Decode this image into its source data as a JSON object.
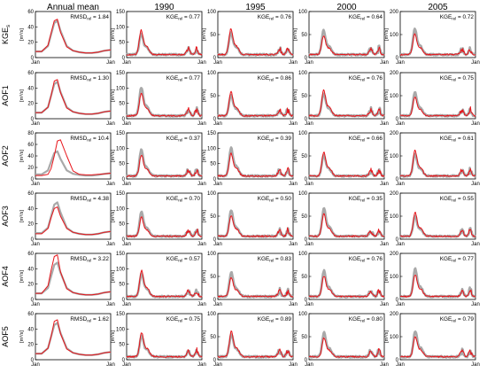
{
  "figure": {
    "columns": [
      "Annual mean",
      "1990",
      "1995",
      "2000",
      "2005"
    ],
    "rows": [
      {
        "label": "KGE",
        "label_sub": "s"
      },
      {
        "label": "AOF1",
        "label_sub": ""
      },
      {
        "label": "AOF2",
        "label_sub": ""
      },
      {
        "label": "AOF3",
        "label_sub": ""
      },
      {
        "label": "AOF4",
        "label_sub": ""
      },
      {
        "label": "AOF5",
        "label_sub": ""
      }
    ],
    "unit_label": "[m³/s]",
    "x_tick_labels": [
      "Jan",
      "Jan"
    ],
    "metric_sub": "rel",
    "colors": {
      "simulated": "#e8141a",
      "observed": "#a9a9a9",
      "axis": "#000000"
    }
  },
  "chart_data": {
    "type": "line",
    "description_series": [
      "observed (grey)",
      "simulated (red)"
    ],
    "panels": [
      {
        "row": 0,
        "col": 0,
        "ylim": [
          0,
          60
        ],
        "yticks": [
          0,
          20,
          40,
          60
        ],
        "metric": "RMSD",
        "metric_value": "1.84"
      },
      {
        "row": 0,
        "col": 1,
        "ylim": [
          0,
          150
        ],
        "yticks": [
          0,
          50,
          100,
          150
        ],
        "metric": "KGE",
        "metric_value": "0.77"
      },
      {
        "row": 0,
        "col": 2,
        "ylim": [
          0,
          100
        ],
        "yticks": [
          0,
          50,
          100
        ],
        "metric": "KGE",
        "metric_value": "0.76"
      },
      {
        "row": 0,
        "col": 3,
        "ylim": [
          0,
          100
        ],
        "yticks": [
          0,
          50,
          100
        ],
        "metric": "KGE",
        "metric_value": "0.64"
      },
      {
        "row": 0,
        "col": 4,
        "ylim": [
          0,
          200
        ],
        "yticks": [
          0,
          100,
          200
        ],
        "metric": "KGE",
        "metric_value": "0.72"
      },
      {
        "row": 1,
        "col": 0,
        "ylim": [
          0,
          60
        ],
        "yticks": [
          0,
          20,
          40,
          60
        ],
        "metric": "RMSD",
        "metric_value": "1.30"
      },
      {
        "row": 1,
        "col": 1,
        "ylim": [
          0,
          150
        ],
        "yticks": [
          0,
          50,
          100,
          150
        ],
        "metric": "KGE",
        "metric_value": "0.77"
      },
      {
        "row": 1,
        "col": 2,
        "ylim": [
          0,
          100
        ],
        "yticks": [
          0,
          50,
          100
        ],
        "metric": "KGE",
        "metric_value": "0.86"
      },
      {
        "row": 1,
        "col": 3,
        "ylim": [
          0,
          100
        ],
        "yticks": [
          0,
          50,
          100
        ],
        "metric": "KGE",
        "metric_value": "0.76"
      },
      {
        "row": 1,
        "col": 4,
        "ylim": [
          0,
          200
        ],
        "yticks": [
          0,
          100,
          200
        ],
        "metric": "KGE",
        "metric_value": "0.75"
      },
      {
        "row": 2,
        "col": 0,
        "ylim": [
          0,
          80
        ],
        "yticks": [
          0,
          20,
          40,
          60,
          80
        ],
        "metric": "RMSD",
        "metric_value": "10.4"
      },
      {
        "row": 2,
        "col": 1,
        "ylim": [
          0,
          150
        ],
        "yticks": [
          0,
          50,
          100,
          150
        ],
        "metric": "KGE",
        "metric_value": "0.37"
      },
      {
        "row": 2,
        "col": 2,
        "ylim": [
          0,
          150
        ],
        "yticks": [
          0,
          50,
          100,
          150
        ],
        "metric": "KGE",
        "metric_value": "0.39"
      },
      {
        "row": 2,
        "col": 3,
        "ylim": [
          0,
          100
        ],
        "yticks": [
          0,
          50,
          100
        ],
        "metric": "KGE",
        "metric_value": "0.66"
      },
      {
        "row": 2,
        "col": 4,
        "ylim": [
          0,
          200
        ],
        "yticks": [
          0,
          100,
          200
        ],
        "metric": "KGE",
        "metric_value": "0.61"
      },
      {
        "row": 3,
        "col": 0,
        "ylim": [
          0,
          60
        ],
        "yticks": [
          0,
          20,
          40,
          60
        ],
        "metric": "RMSD",
        "metric_value": "4.38"
      },
      {
        "row": 3,
        "col": 1,
        "ylim": [
          0,
          150
        ],
        "yticks": [
          0,
          50,
          100,
          150
        ],
        "metric": "KGE",
        "metric_value": "0.70"
      },
      {
        "row": 3,
        "col": 2,
        "ylim": [
          0,
          100
        ],
        "yticks": [
          0,
          50,
          100
        ],
        "metric": "KGE",
        "metric_value": "0.50"
      },
      {
        "row": 3,
        "col": 3,
        "ylim": [
          0,
          100
        ],
        "yticks": [
          0,
          50,
          100
        ],
        "metric": "KGE",
        "metric_value": "0.35"
      },
      {
        "row": 3,
        "col": 4,
        "ylim": [
          0,
          200
        ],
        "yticks": [
          0,
          100,
          200
        ],
        "metric": "KGE",
        "metric_value": "0.55"
      },
      {
        "row": 4,
        "col": 0,
        "ylim": [
          0,
          60
        ],
        "yticks": [
          0,
          20,
          40,
          60
        ],
        "metric": "RMSD",
        "metric_value": "3.22"
      },
      {
        "row": 4,
        "col": 1,
        "ylim": [
          0,
          150
        ],
        "yticks": [
          0,
          50,
          100,
          150
        ],
        "metric": "KGE",
        "metric_value": "0.57"
      },
      {
        "row": 4,
        "col": 2,
        "ylim": [
          0,
          100
        ],
        "yticks": [
          0,
          50,
          100
        ],
        "metric": "KGE",
        "metric_value": "0.83"
      },
      {
        "row": 4,
        "col": 3,
        "ylim": [
          0,
          100
        ],
        "yticks": [
          0,
          50,
          100
        ],
        "metric": "KGE",
        "metric_value": "0.76"
      },
      {
        "row": 4,
        "col": 4,
        "ylim": [
          0,
          200
        ],
        "yticks": [
          0,
          100,
          200
        ],
        "metric": "KGE",
        "metric_value": "0.77"
      },
      {
        "row": 5,
        "col": 0,
        "ylim": [
          0,
          60
        ],
        "yticks": [
          0,
          20,
          40,
          60
        ],
        "metric": "RMSD",
        "metric_value": "1.62"
      },
      {
        "row": 5,
        "col": 1,
        "ylim": [
          0,
          150
        ],
        "yticks": [
          0,
          50,
          100,
          150
        ],
        "metric": "KGE",
        "metric_value": "0.75"
      },
      {
        "row": 5,
        "col": 2,
        "ylim": [
          0,
          100
        ],
        "yticks": [
          0,
          50,
          100
        ],
        "metric": "KGE",
        "metric_value": "0.89"
      },
      {
        "row": 5,
        "col": 3,
        "ylim": [
          0,
          100
        ],
        "yticks": [
          0,
          50,
          100
        ],
        "metric": "KGE",
        "metric_value": "0.80"
      },
      {
        "row": 5,
        "col": 4,
        "ylim": [
          0,
          200
        ],
        "yticks": [
          0,
          100,
          200
        ],
        "metric": "KGE",
        "metric_value": "0.79"
      }
    ],
    "series_profiles": {
      "annual_mean": {
        "x_months": [
          0,
          1,
          2,
          2.5,
          3,
          3.5,
          4,
          5,
          6,
          7,
          8,
          9,
          10,
          11,
          12
        ],
        "observed": [
          8,
          8,
          15,
          30,
          45,
          48,
          35,
          15,
          9,
          7,
          6,
          6,
          7,
          9,
          10
        ],
        "simulated_by_row": [
          [
            8,
            8,
            16,
            32,
            48,
            50,
            33,
            14,
            9,
            7,
            6,
            6,
            7,
            9,
            10
          ],
          [
            8,
            8,
            15,
            30,
            49,
            51,
            34,
            14,
            9,
            7,
            6,
            6,
            7,
            9,
            10
          ],
          [
            6,
            6,
            8,
            18,
            40,
            66,
            68,
            40,
            14,
            8,
            7,
            7,
            8,
            9,
            10
          ],
          [
            7,
            7,
            14,
            28,
            40,
            42,
            30,
            14,
            9,
            7,
            6,
            6,
            7,
            9,
            10
          ],
          [
            8,
            8,
            18,
            38,
            56,
            58,
            36,
            14,
            9,
            7,
            6,
            6,
            7,
            9,
            10
          ],
          [
            8,
            8,
            15,
            30,
            50,
            52,
            34,
            14,
            9,
            7,
            6,
            6,
            7,
            9,
            10
          ]
        ]
      }
    }
  }
}
